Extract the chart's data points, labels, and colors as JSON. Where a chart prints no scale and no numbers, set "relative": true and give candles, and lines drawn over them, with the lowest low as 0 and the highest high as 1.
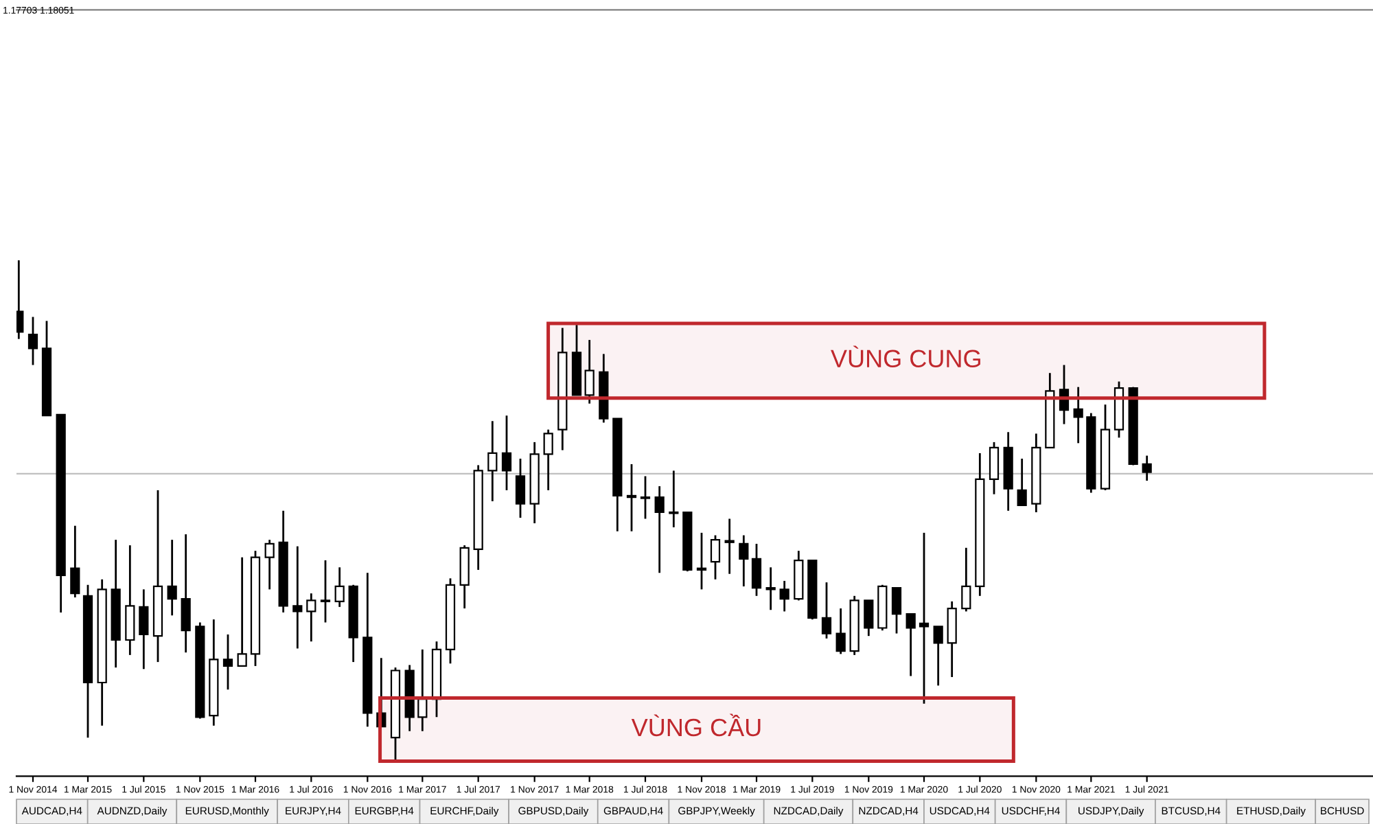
{
  "chart_data": {
    "type": "candlestick",
    "relative": true,
    "x": [
      "2014-10",
      "2014-11",
      "2014-12",
      "2015-01",
      "2015-02",
      "2015-03",
      "2015-04",
      "2015-05",
      "2015-06",
      "2015-07",
      "2015-08",
      "2015-09",
      "2015-10",
      "2015-11",
      "2015-12",
      "2016-01",
      "2016-02",
      "2016-03",
      "2016-04",
      "2016-05",
      "2016-06",
      "2016-07",
      "2016-08",
      "2016-09",
      "2016-10",
      "2016-11",
      "2016-12",
      "2017-01",
      "2017-02",
      "2017-03",
      "2017-04",
      "2017-05",
      "2017-06",
      "2017-07",
      "2017-08",
      "2017-09",
      "2017-10",
      "2017-11",
      "2017-12",
      "2018-01",
      "2018-02",
      "2018-03",
      "2018-04",
      "2018-05",
      "2018-06",
      "2018-07",
      "2018-08",
      "2018-09",
      "2018-10",
      "2018-11",
      "2018-12",
      "2019-01",
      "2019-02",
      "2019-03",
      "2019-04",
      "2019-05",
      "2019-06",
      "2019-07",
      "2019-08",
      "2019-09",
      "2019-10",
      "2019-11",
      "2019-12",
      "2020-01",
      "2020-02",
      "2020-03",
      "2020-04",
      "2020-05",
      "2020-06",
      "2020-07",
      "2020-08",
      "2020-09",
      "2020-10",
      "2020-11",
      "2020-12",
      "2021-01",
      "2021-02",
      "2021-03",
      "2021-04",
      "2021-05",
      "2021-06",
      "2021-07"
    ],
    "ohlc": [
      [
        0.898,
        1.0,
        0.843,
        0.857
      ],
      [
        0.852,
        0.887,
        0.791,
        0.824
      ],
      [
        0.824,
        0.879,
        0.69,
        0.69
      ],
      [
        0.692,
        0.692,
        0.297,
        0.371
      ],
      [
        0.385,
        0.47,
        0.327,
        0.335
      ],
      [
        0.33,
        0.352,
        0.047,
        0.157
      ],
      [
        0.157,
        0.363,
        0.071,
        0.343
      ],
      [
        0.343,
        0.442,
        0.187,
        0.242
      ],
      [
        0.242,
        0.431,
        0.212,
        0.31
      ],
      [
        0.308,
        0.343,
        0.184,
        0.253
      ],
      [
        0.25,
        0.541,
        0.198,
        0.349
      ],
      [
        0.349,
        0.442,
        0.291,
        0.324
      ],
      [
        0.324,
        0.453,
        0.217,
        0.261
      ],
      [
        0.269,
        0.277,
        0.085,
        0.088
      ],
      [
        0.091,
        0.283,
        0.071,
        0.203
      ],
      [
        0.203,
        0.253,
        0.143,
        0.19
      ],
      [
        0.19,
        0.407,
        0.19,
        0.214
      ],
      [
        0.214,
        0.42,
        0.19,
        0.407
      ],
      [
        0.407,
        0.442,
        0.343,
        0.434
      ],
      [
        0.437,
        0.5,
        0.297,
        0.31
      ],
      [
        0.31,
        0.429,
        0.225,
        0.299
      ],
      [
        0.299,
        0.335,
        0.239,
        0.321
      ],
      [
        0.321,
        0.401,
        0.277,
        0.319
      ],
      [
        0.319,
        0.387,
        0.308,
        0.349
      ],
      [
        0.349,
        0.352,
        0.198,
        0.247
      ],
      [
        0.247,
        0.376,
        0.069,
        0.096
      ],
      [
        0.096,
        0.206,
        0.069,
        0.069
      ],
      [
        0.047,
        0.187,
        0.0,
        0.181
      ],
      [
        0.181,
        0.192,
        0.06,
        0.088
      ],
      [
        0.088,
        0.223,
        0.06,
        0.124
      ],
      [
        0.124,
        0.239,
        0.088,
        0.223
      ],
      [
        0.223,
        0.365,
        0.195,
        0.352
      ],
      [
        0.352,
        0.431,
        0.305,
        0.426
      ],
      [
        0.423,
        0.591,
        0.382,
        0.58
      ],
      [
        0.58,
        0.679,
        0.519,
        0.615
      ],
      [
        0.615,
        0.69,
        0.541,
        0.58
      ],
      [
        0.569,
        0.604,
        0.486,
        0.514
      ],
      [
        0.514,
        0.637,
        0.475,
        0.613
      ],
      [
        0.613,
        0.662,
        0.541,
        0.654
      ],
      [
        0.662,
        0.865,
        0.621,
        0.816
      ],
      [
        0.816,
        0.871,
        0.731,
        0.731
      ],
      [
        0.731,
        0.841,
        0.714,
        0.78
      ],
      [
        0.777,
        0.813,
        0.676,
        0.684
      ],
      [
        0.684,
        0.684,
        0.459,
        0.53
      ],
      [
        0.53,
        0.593,
        0.459,
        0.527
      ],
      [
        0.525,
        0.569,
        0.484,
        0.527
      ],
      [
        0.527,
        0.549,
        0.376,
        0.497
      ],
      [
        0.497,
        0.58,
        0.467,
        0.495
      ],
      [
        0.497,
        0.497,
        0.379,
        0.382
      ],
      [
        0.385,
        0.456,
        0.343,
        0.382
      ],
      [
        0.398,
        0.451,
        0.363,
        0.442
      ],
      [
        0.44,
        0.484,
        0.374,
        0.437
      ],
      [
        0.434,
        0.451,
        0.349,
        0.404
      ],
      [
        0.404,
        0.434,
        0.33,
        0.346
      ],
      [
        0.346,
        0.387,
        0.302,
        0.343
      ],
      [
        0.343,
        0.36,
        0.299,
        0.324
      ],
      [
        0.324,
        0.42,
        0.321,
        0.401
      ],
      [
        0.401,
        0.401,
        0.283,
        0.286
      ],
      [
        0.286,
        0.357,
        0.245,
        0.255
      ],
      [
        0.255,
        0.305,
        0.214,
        0.22
      ],
      [
        0.22,
        0.33,
        0.212,
        0.321
      ],
      [
        0.321,
        0.321,
        0.25,
        0.266
      ],
      [
        0.266,
        0.352,
        0.261,
        0.349
      ],
      [
        0.346,
        0.346,
        0.255,
        0.294
      ],
      [
        0.294,
        0.294,
        0.17,
        0.266
      ],
      [
        0.275,
        0.456,
        0.115,
        0.269
      ],
      [
        0.269,
        0.269,
        0.151,
        0.236
      ],
      [
        0.236,
        0.319,
        0.168,
        0.305
      ],
      [
        0.305,
        0.426,
        0.299,
        0.349
      ],
      [
        0.349,
        0.615,
        0.33,
        0.563
      ],
      [
        0.563,
        0.637,
        0.533,
        0.626
      ],
      [
        0.626,
        0.657,
        0.5,
        0.544
      ],
      [
        0.541,
        0.604,
        0.511,
        0.511
      ],
      [
        0.514,
        0.654,
        0.497,
        0.626
      ],
      [
        0.626,
        0.775,
        0.626,
        0.739
      ],
      [
        0.742,
        0.791,
        0.673,
        0.701
      ],
      [
        0.703,
        0.747,
        0.635,
        0.687
      ],
      [
        0.687,
        0.695,
        0.536,
        0.544
      ],
      [
        0.544,
        0.712,
        0.541,
        0.662
      ],
      [
        0.662,
        0.758,
        0.646,
        0.745
      ],
      [
        0.745,
        0.747,
        0.591,
        0.593
      ],
      [
        0.593,
        0.61,
        0.56,
        0.577
      ]
    ],
    "xlim": [
      "2014-09-26",
      "2022-11-07"
    ],
    "xticks": [
      {
        "value": "2014-11-01",
        "label": "1 Nov 2014"
      },
      {
        "value": "2015-03-01",
        "label": "1 Mar 2015"
      },
      {
        "value": "2015-07-01",
        "label": "1 Jul 2015"
      },
      {
        "value": "2015-11-01",
        "label": "1 Nov 2015"
      },
      {
        "value": "2016-03-01",
        "label": "1 Mar 2016"
      },
      {
        "value": "2016-07-01",
        "label": "1 Jul 2016"
      },
      {
        "value": "2016-11-01",
        "label": "1 Nov 2016"
      },
      {
        "value": "2017-03-01",
        "label": "1 Mar 2017"
      },
      {
        "value": "2017-07-01",
        "label": "1 Jul 2017"
      },
      {
        "value": "2017-11-01",
        "label": "1 Nov 2017"
      },
      {
        "value": "2018-03-01",
        "label": "1 Mar 2018"
      },
      {
        "value": "2018-07-01",
        "label": "1 Jul 2018"
      },
      {
        "value": "2018-11-01",
        "label": "1 Nov 2018"
      },
      {
        "value": "2019-03-01",
        "label": "1 Mar 2019"
      },
      {
        "value": "2019-07-01",
        "label": "1 Jul 2019"
      },
      {
        "value": "2019-11-01",
        "label": "1 Nov 2019"
      },
      {
        "value": "2020-03-01",
        "label": "1 Mar 2020"
      },
      {
        "value": "2020-07-01",
        "label": "1 Jul 2020"
      },
      {
        "value": "2020-11-01",
        "label": "1 Nov 2020"
      },
      {
        "value": "2021-03-01",
        "label": "1 Mar 2021"
      },
      {
        "value": "2021-07-01",
        "label": "1 Jul 2021"
      }
    ],
    "ref_lines": [
      {
        "axis": "y",
        "value": 0.574,
        "color": "#c0c0c0"
      }
    ],
    "bands": [
      {
        "axis": "y",
        "from": 0.725,
        "to": 0.874,
        "label": "VÙNG CUNG",
        "color": "#c0282d"
      },
      {
        "axis": "y",
        "from": 0.0,
        "to": 0.126,
        "label": "VÙNG CẦU",
        "color": "#c0282d"
      }
    ],
    "grid": false,
    "annotations": [
      "1.17703 1.18051",
      "AUDCAD,H4",
      "AUDNZD,Daily",
      "EURUSD,Monthly",
      "EURJPY,H4",
      "EURGBP,H4",
      "EURCHF,Daily",
      "GBPUSD,Daily",
      "GBPAUD,H4",
      "GBPJPY,Weekly",
      "NZDCAD,Daily",
      "NZDCAD,H4",
      "USDCAD,H4",
      "USDCHF,H4",
      "USDJPY,Daily",
      "BTCUSD,H4",
      "ETHUSD,Daily",
      "BCHUSD"
    ]
  }
}
